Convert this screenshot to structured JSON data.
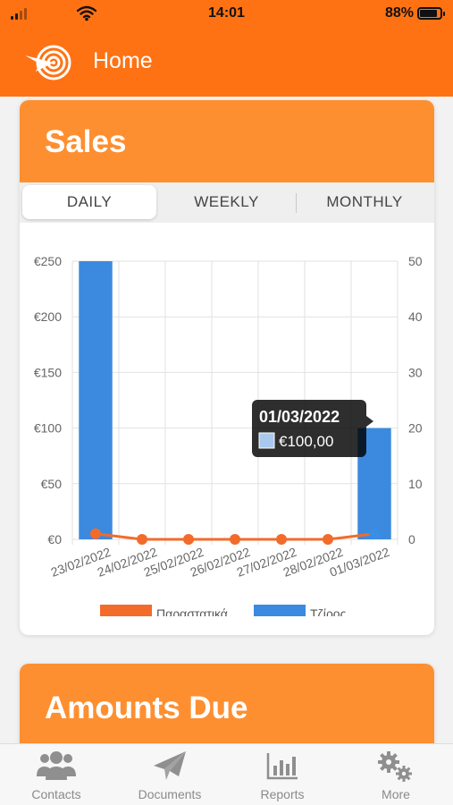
{
  "status_bar": {
    "time": "14:01",
    "battery_text": "88%",
    "battery_level": 0.88
  },
  "header": {
    "title": "Home",
    "logo_icon": "target-arrow-icon"
  },
  "sales": {
    "title": "Sales",
    "tabs": [
      {
        "label": "DAILY",
        "active": true
      },
      {
        "label": "WEEKLY",
        "active": false
      },
      {
        "label": "MONTHLY",
        "active": false
      }
    ]
  },
  "chart_data": {
    "type": "bar",
    "categories": [
      "23/02/2022",
      "24/02/2022",
      "25/02/2022",
      "26/02/2022",
      "27/02/2022",
      "28/02/2022",
      "01/03/2022"
    ],
    "series": [
      {
        "name": "Τζίρος",
        "type": "bar",
        "axis": "left",
        "color": "#3b8ae0",
        "values": [
          250,
          0,
          0,
          0,
          0,
          0,
          100
        ]
      },
      {
        "name": "Παραστατικά",
        "type": "line",
        "axis": "right",
        "color": "#f26b2b",
        "values": [
          1,
          0,
          0,
          0,
          0,
          0,
          1
        ]
      }
    ],
    "y_left": {
      "ticks": [
        "€0",
        "€50",
        "€100",
        "€150",
        "€200",
        "€250"
      ],
      "range": [
        0,
        250
      ]
    },
    "y_right": {
      "ticks": [
        "0",
        "10",
        "20",
        "30",
        "40",
        "50"
      ],
      "range": [
        0,
        50
      ]
    },
    "grid": true,
    "legend_position": "bottom",
    "tooltip": {
      "title": "01/03/2022",
      "value": "€100,00",
      "color": "#a9c8ee"
    }
  },
  "amounts_due": {
    "title": "Amounts Due"
  },
  "tabbar": {
    "items": [
      {
        "label": "Contacts",
        "icon": "contacts-icon"
      },
      {
        "label": "Documents",
        "icon": "paper-plane-icon"
      },
      {
        "label": "Reports",
        "icon": "bar-chart-icon"
      },
      {
        "label": "More",
        "icon": "gears-icon"
      }
    ]
  }
}
